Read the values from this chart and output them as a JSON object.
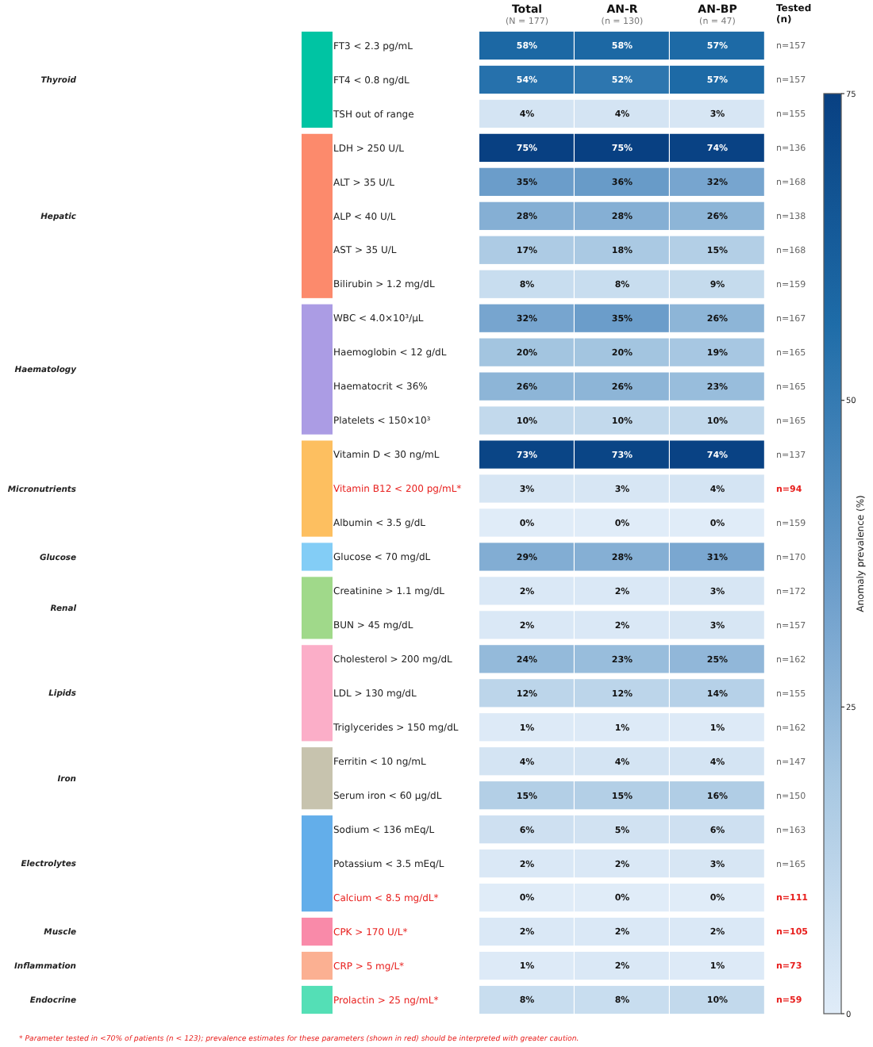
{
  "chart_data": {
    "type": "heatmap",
    "categories": [
      "Total\n(N = 177)",
      "AN-R\n(n = 130)",
      "AN-BP\n(n = 47)"
    ],
    "y_categories": [
      "FT3 < 2.3 pg/mL",
      "FT4 < 0.8 ng/dL",
      "TSH out of range",
      "LDH > 250 U/L",
      "ALT > 35 U/L",
      "ALP < 40 U/L",
      "AST > 35 U/L",
      "Bilirubin > 1.2 mg/dL",
      "WBC < 4.0×10³/μL",
      "Haemoglobin < 12 g/dL",
      "Haematocrit < 36%",
      "Platelets < 150×10³",
      "Vitamin D < 30 ng/mL",
      "Vitamin B12 < 200 pg/mL*",
      "Albumin < 3.5 g/dL",
      "Glucose < 70 mg/dL",
      "Creatinine > 1.1 mg/dL",
      "BUN > 45 mg/dL",
      "Cholesterol > 200 mg/dL",
      "LDL > 130 mg/dL",
      "Triglycerides > 150 mg/dL",
      "Ferritin < 10 ng/mL",
      "Serum iron < 60 μg/dL",
      "Sodium < 136 mEq/L",
      "Potassium < 3.5 mEq/L",
      "Calcium < 8.5 mg/dL*",
      "CPK > 170 U/L*",
      "CRP > 5 mg/L*",
      "Prolactin > 25 ng/mL*"
    ],
    "y2_categories": [
      "n=157",
      "n=157",
      "n=155",
      "n=136",
      "n=168",
      "n=138",
      "n=168",
      "n=159",
      "n=167",
      "n=165",
      "n=165",
      "n=165",
      "n=137",
      "n=94",
      "n=159",
      "n=170",
      "n=172",
      "n=157",
      "n=162",
      "n=155",
      "n=162",
      "n=147",
      "n=150",
      "n=163",
      "n=165",
      "n=111",
      "n=105",
      "n=73",
      "n=59"
    ],
    "y2label": "Tested\n(n)",
    "cells": [
      [
        58,
        58,
        57
      ],
      [
        54,
        52,
        57
      ],
      [
        4,
        4,
        3
      ],
      [
        75,
        75,
        74
      ],
      [
        35,
        36,
        32
      ],
      [
        28,
        28,
        26
      ],
      [
        17,
        18,
        15
      ],
      [
        8,
        8,
        9
      ],
      [
        32,
        35,
        26
      ],
      [
        20,
        20,
        19
      ],
      [
        26,
        26,
        23
      ],
      [
        10,
        10,
        10
      ],
      [
        73,
        73,
        74
      ],
      [
        3,
        3,
        4
      ],
      [
        0,
        0,
        0
      ],
      [
        29,
        28,
        31
      ],
      [
        2,
        2,
        3
      ],
      [
        2,
        2,
        3
      ],
      [
        24,
        23,
        25
      ],
      [
        12,
        12,
        14
      ],
      [
        1,
        1,
        1
      ],
      [
        4,
        4,
        4
      ],
      [
        15,
        15,
        16
      ],
      [
        6,
        5,
        6
      ],
      [
        2,
        2,
        3
      ],
      [
        0,
        0,
        0
      ],
      [
        2,
        2,
        2
      ],
      [
        1,
        2,
        1
      ],
      [
        8,
        8,
        10
      ]
    ],
    "cell_labels": [
      [
        "58%",
        "58%",
        "57%"
      ],
      [
        "54%",
        "52%",
        "57%"
      ],
      [
        "4%",
        "4%",
        "3%"
      ],
      [
        "75%",
        "75%",
        "74%"
      ],
      [
        "35%",
        "36%",
        "32%"
      ],
      [
        "28%",
        "28%",
        "26%"
      ],
      [
        "17%",
        "18%",
        "15%"
      ],
      [
        "8%",
        "8%",
        "9%"
      ],
      [
        "32%",
        "35%",
        "26%"
      ],
      [
        "20%",
        "20%",
        "19%"
      ],
      [
        "26%",
        "26%",
        "23%"
      ],
      [
        "10%",
        "10%",
        "10%"
      ],
      [
        "73%",
        "73%",
        "74%"
      ],
      [
        "3%",
        "3%",
        "4%"
      ],
      [
        "0%",
        "0%",
        "0%"
      ],
      [
        "29%",
        "28%",
        "31%"
      ],
      [
        "2%",
        "2%",
        "3%"
      ],
      [
        "2%",
        "2%",
        "3%"
      ],
      [
        "24%",
        "23%",
        "25%"
      ],
      [
        "12%",
        "12%",
        "14%"
      ],
      [
        "1%",
        "1%",
        "1%"
      ],
      [
        "4%",
        "4%",
        "4%"
      ],
      [
        "15%",
        "15%",
        "16%"
      ],
      [
        "6%",
        "5%",
        "6%"
      ],
      [
        "2%",
        "2%",
        "3%"
      ],
      [
        "0%",
        "0%",
        "0%"
      ],
      [
        "2%",
        "2%",
        "2%"
      ],
      [
        "1%",
        "2%",
        "1%"
      ],
      [
        "8%",
        "8%",
        "10%"
      ]
    ],
    "clim": [
      0,
      75
    ],
    "cticks": [
      0,
      25,
      50,
      75
    ],
    "clabel": "Anomaly prevalence (%)",
    "annotations": [
      "Thyroid",
      "Hepatic",
      "Haematology",
      "Micronutrients",
      "Glucose",
      "Renal",
      "Lipids",
      "Iron",
      "Electrolytes",
      "Muscle",
      "Inflammation",
      "Endocrine",
      "* Parameter tested in <70% of patients (n < 123); prevalence estimates for these parameters (shown in red) should be interpreted with greater caution."
    ]
  }
}
